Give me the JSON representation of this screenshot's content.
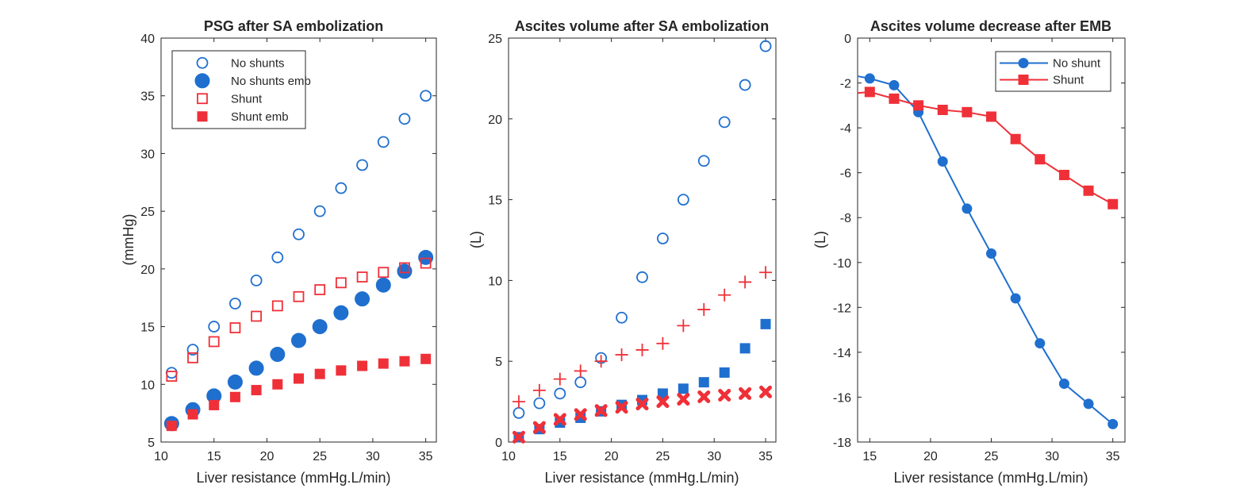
{
  "colors": {
    "blue": "#1f6fcf",
    "red": "#ef3038",
    "axis": "#262626"
  },
  "chart_data": [
    {
      "type": "scatter",
      "title": "PSG after SA embolization",
      "xlabel": "Liver resistance (mmHg.L/min)",
      "ylabel": "(mmHg)",
      "xlim": [
        10,
        36
      ],
      "ylim": [
        5,
        40
      ],
      "xticks": [
        10,
        15,
        20,
        25,
        30,
        35
      ],
      "yticks": [
        5,
        10,
        15,
        20,
        25,
        30,
        35,
        40
      ],
      "legend": {
        "placement": "top-left"
      },
      "series": [
        {
          "name": "No shunts",
          "marker": "circle-open",
          "color": "blue",
          "x": [
            11,
            13,
            15,
            17,
            19,
            21,
            23,
            25,
            27,
            29,
            31,
            33,
            35
          ],
          "y": [
            11,
            13,
            15,
            17,
            19,
            21,
            23,
            25,
            27,
            29,
            31,
            33,
            35
          ]
        },
        {
          "name": "No shunts emb",
          "marker": "circle-filled",
          "color": "blue",
          "x": [
            11,
            13,
            15,
            17,
            19,
            21,
            23,
            25,
            27,
            29,
            31,
            33,
            35
          ],
          "y": [
            6.6,
            7.8,
            9.0,
            10.2,
            11.4,
            12.6,
            13.8,
            15.0,
            16.2,
            17.4,
            18.6,
            19.8,
            21.0
          ]
        },
        {
          "name": "Shunt",
          "marker": "square-open",
          "color": "red",
          "x": [
            11,
            13,
            15,
            17,
            19,
            21,
            23,
            25,
            27,
            29,
            31,
            33,
            35
          ],
          "y": [
            10.7,
            12.3,
            13.7,
            14.9,
            15.9,
            16.8,
            17.6,
            18.2,
            18.8,
            19.3,
            19.7,
            20.1,
            20.5
          ]
        },
        {
          "name": "Shunt emb",
          "marker": "square-filled",
          "color": "red",
          "x": [
            11,
            13,
            15,
            17,
            19,
            21,
            23,
            25,
            27,
            29,
            31,
            33,
            35
          ],
          "y": [
            6.4,
            7.4,
            8.2,
            8.9,
            9.5,
            10.0,
            10.5,
            10.9,
            11.2,
            11.6,
            11.8,
            12.0,
            12.2
          ]
        }
      ]
    },
    {
      "type": "scatter",
      "title": "Ascites volume after SA embolization",
      "xlabel": "Liver resistance (mmHg.L/min)",
      "ylabel": "(L)",
      "xlim": [
        10,
        36
      ],
      "ylim": [
        0,
        25
      ],
      "xticks": [
        10,
        15,
        20,
        25,
        30,
        35
      ],
      "yticks": [
        0,
        5,
        10,
        15,
        20,
        25
      ],
      "series": [
        {
          "marker": "circle-open",
          "color": "blue",
          "x": [
            11,
            13,
            15,
            17,
            19,
            21,
            23,
            25,
            27,
            29,
            31,
            33,
            35
          ],
          "y": [
            1.8,
            2.4,
            3.0,
            3.7,
            5.2,
            7.7,
            10.2,
            12.6,
            15.0,
            17.4,
            19.8,
            22.1,
            24.5
          ]
        },
        {
          "marker": "square-filled",
          "color": "blue",
          "x": [
            11,
            13,
            15,
            17,
            19,
            21,
            23,
            25,
            27,
            29,
            31,
            33,
            35
          ],
          "y": [
            0.3,
            0.8,
            1.2,
            1.5,
            1.9,
            2.3,
            2.6,
            3.0,
            3.3,
            3.7,
            4.3,
            5.8,
            7.3
          ]
        },
        {
          "marker": "plus",
          "color": "red",
          "x": [
            11,
            13,
            15,
            17,
            19,
            21,
            23,
            25,
            27,
            29,
            31,
            33,
            35
          ],
          "y": [
            2.5,
            3.2,
            3.9,
            4.4,
            5.0,
            5.4,
            5.7,
            6.1,
            7.2,
            8.2,
            9.1,
            9.9,
            10.5
          ]
        },
        {
          "marker": "x-filled",
          "color": "red",
          "x": [
            11,
            13,
            15,
            17,
            19,
            21,
            23,
            25,
            27,
            29,
            31,
            33,
            35
          ],
          "y": [
            0.3,
            0.9,
            1.4,
            1.7,
            1.95,
            2.15,
            2.35,
            2.5,
            2.65,
            2.8,
            2.9,
            3.0,
            3.1
          ]
        }
      ]
    },
    {
      "type": "line",
      "title": "Ascites volume decrease after EMB",
      "xlabel": "Liver resistance (mmHg.L/min)",
      "ylabel": "(L)",
      "xlim": [
        14,
        36
      ],
      "ylim": [
        -18,
        0
      ],
      "xticks": [
        15,
        20,
        25,
        30,
        35
      ],
      "yticks": [
        0,
        -2,
        -4,
        -6,
        -8,
        -10,
        -12,
        -14,
        -16,
        -18
      ],
      "legend": {
        "placement": "top-right"
      },
      "series": [
        {
          "name": "No shunt",
          "marker": "circle-filled",
          "color": "blue",
          "x": [
            15,
            17,
            19,
            21,
            23,
            25,
            27,
            29,
            31,
            33,
            35
          ],
          "y": [
            -1.8,
            -2.1,
            -3.3,
            -5.5,
            -7.6,
            -9.6,
            -11.6,
            -13.6,
            -15.4,
            -16.3,
            -17.2
          ],
          "line_start": [
            14,
            -1.7
          ]
        },
        {
          "name": "Shunt",
          "marker": "square-filled",
          "color": "red",
          "x": [
            15,
            17,
            19,
            21,
            23,
            25,
            27,
            29,
            31,
            33,
            35
          ],
          "y": [
            -2.4,
            -2.7,
            -3.0,
            -3.2,
            -3.3,
            -3.5,
            -4.5,
            -5.4,
            -6.1,
            -6.8,
            -7.4
          ],
          "line_start": [
            14,
            -2.45
          ]
        }
      ]
    }
  ]
}
